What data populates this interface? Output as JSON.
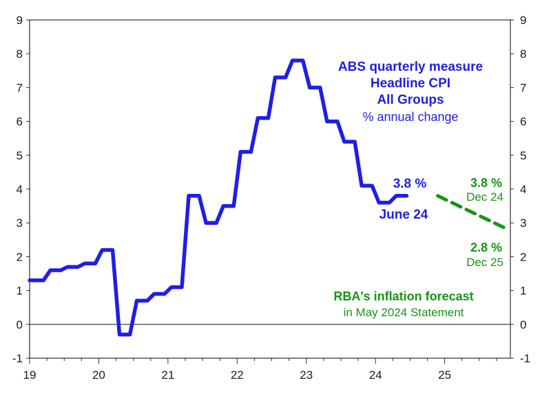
{
  "chart_data": {
    "type": "line",
    "title": "",
    "xlabel": "",
    "ylabel": "",
    "ylim": [
      -1,
      9
    ],
    "xlim": [
      2019,
      2025.95
    ],
    "yticks": [
      "-1",
      "0",
      "1",
      "2",
      "3",
      "4",
      "5",
      "6",
      "7",
      "8",
      "9"
    ],
    "xticks": [
      {
        "label": "19",
        "x": 2019
      },
      {
        "label": "20",
        "x": 2020
      },
      {
        "label": "21",
        "x": 2021
      },
      {
        "label": "22",
        "x": 2022
      },
      {
        "label": "23",
        "x": 2023
      },
      {
        "label": "24",
        "x": 2024
      },
      {
        "label": "25",
        "x": 2025
      }
    ],
    "grid": false,
    "series": [
      {
        "key": "abs",
        "style": "step",
        "color": "#1f1fe6",
        "points": [
          {
            "x": 2019.0,
            "y": 1.3
          },
          {
            "x": 2019.25,
            "y": 1.6
          },
          {
            "x": 2019.5,
            "y": 1.7
          },
          {
            "x": 2019.75,
            "y": 1.8
          },
          {
            "x": 2020.0,
            "y": 2.2
          },
          {
            "x": 2020.25,
            "y": -0.3
          },
          {
            "x": 2020.5,
            "y": 0.7
          },
          {
            "x": 2020.75,
            "y": 0.9
          },
          {
            "x": 2021.0,
            "y": 1.1
          },
          {
            "x": 2021.25,
            "y": 3.8
          },
          {
            "x": 2021.5,
            "y": 3.0
          },
          {
            "x": 2021.75,
            "y": 3.5
          },
          {
            "x": 2022.0,
            "y": 5.1
          },
          {
            "x": 2022.25,
            "y": 6.1
          },
          {
            "x": 2022.5,
            "y": 7.3
          },
          {
            "x": 2022.75,
            "y": 7.8
          },
          {
            "x": 2023.0,
            "y": 7.0
          },
          {
            "x": 2023.25,
            "y": 6.0
          },
          {
            "x": 2023.5,
            "y": 5.4
          },
          {
            "x": 2023.75,
            "y": 4.1
          },
          {
            "x": 2024.0,
            "y": 3.6
          },
          {
            "x": 2024.25,
            "y": 3.8
          }
        ],
        "end_x": 2024.45
      },
      {
        "key": "rba",
        "style": "dashed",
        "color": "#179417",
        "points": [
          {
            "x": 2024.9,
            "y": 3.8
          },
          {
            "x": 2025.92,
            "y": 2.8
          }
        ]
      }
    ],
    "annotations": {
      "abs_title_1": "ABS quarterly  measure",
      "abs_title_2": "Headline  CPI",
      "abs_title_3": "All Groups",
      "abs_subtitle": "% annual  change",
      "latest_value": "3.8  %",
      "latest_date": "June  24",
      "rba_start_value": "3.8 %",
      "rba_start_date": "Dec 24",
      "rba_end_value": "2.8 %",
      "rba_end_date": "Dec 25",
      "rba_title": "RBA's inflation forecast",
      "rba_subtitle": "in May 2024  Statement"
    }
  }
}
